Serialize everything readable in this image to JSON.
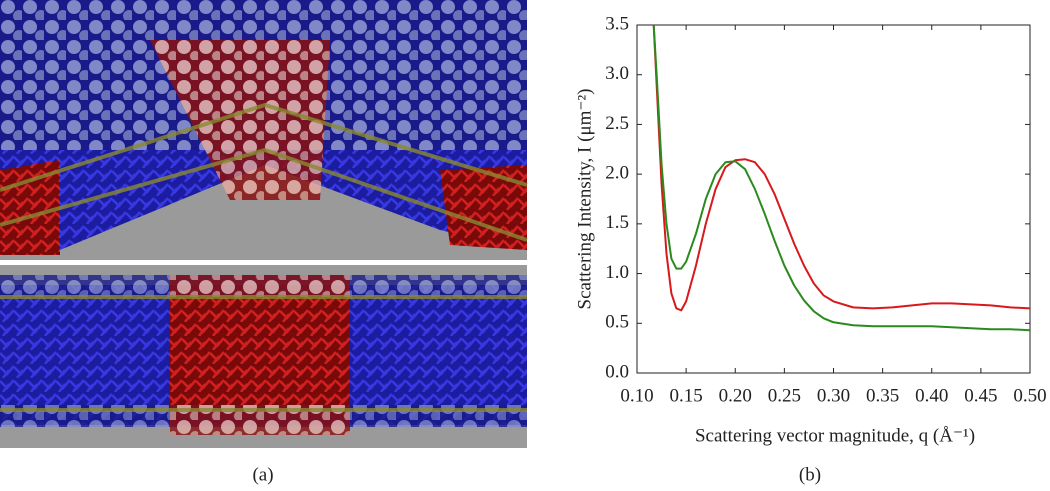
{
  "captions": [
    "(a)",
    "(b)"
  ],
  "chart_data": {
    "type": "line",
    "xlabel": "Scattering vector magnitude, q (Å⁻¹)",
    "ylabel": "Scattering Intensity, I (μm⁻²)",
    "x": [
      0.117,
      0.12,
      0.125,
      0.13,
      0.135,
      0.14,
      0.145,
      0.15,
      0.16,
      0.17,
      0.18,
      0.19,
      0.2,
      0.21,
      0.22,
      0.23,
      0.24,
      0.25,
      0.26,
      0.27,
      0.28,
      0.29,
      0.3,
      0.32,
      0.34,
      0.36,
      0.38,
      0.4,
      0.42,
      0.44,
      0.46,
      0.48,
      0.5
    ],
    "series": [
      {
        "color": "#d7191c",
        "values": [
          3.5,
          2.9,
          1.9,
          1.2,
          0.8,
          0.65,
          0.63,
          0.72,
          1.08,
          1.5,
          1.85,
          2.07,
          2.14,
          2.15,
          2.12,
          2.0,
          1.8,
          1.55,
          1.3,
          1.08,
          0.9,
          0.78,
          0.72,
          0.66,
          0.65,
          0.66,
          0.68,
          0.7,
          0.7,
          0.69,
          0.68,
          0.66,
          0.65
        ]
      },
      {
        "color": "#2a8a1e",
        "values": [
          3.5,
          3.0,
          2.1,
          1.5,
          1.15,
          1.05,
          1.05,
          1.12,
          1.4,
          1.75,
          2.0,
          2.12,
          2.13,
          2.05,
          1.85,
          1.6,
          1.33,
          1.08,
          0.88,
          0.73,
          0.62,
          0.55,
          0.51,
          0.48,
          0.47,
          0.47,
          0.47,
          0.47,
          0.46,
          0.45,
          0.44,
          0.44,
          0.43
        ]
      }
    ],
    "xlim": [
      0.1,
      0.5
    ],
    "ylim": [
      0,
      3.5
    ],
    "xticks": [
      {
        "value": 0.1,
        "label": "0.10"
      },
      0.15,
      {
        "value": 0.2,
        "label": "0.20"
      },
      0.25,
      {
        "value": 0.3,
        "label": "0.30"
      },
      0.35,
      {
        "value": 0.4,
        "label": "0.40"
      },
      0.45,
      {
        "value": 0.5,
        "label": "0.50"
      }
    ],
    "yticks": [
      {
        "value": 0,
        "label": "0.0"
      },
      0.5,
      {
        "value": 1,
        "label": "1.0"
      },
      1.5,
      {
        "value": 2,
        "label": "2.0"
      },
      2.5,
      {
        "value": 3,
        "label": "3.0"
      },
      3.5
    ]
  }
}
